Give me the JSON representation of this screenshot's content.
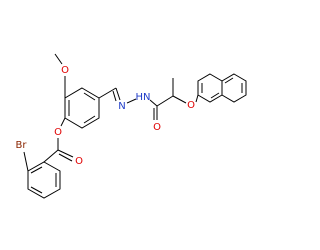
{
  "atoms": [
    "O",
    "O",
    "O",
    "Br",
    "N",
    "HN",
    "O",
    "O"
  ]
}
